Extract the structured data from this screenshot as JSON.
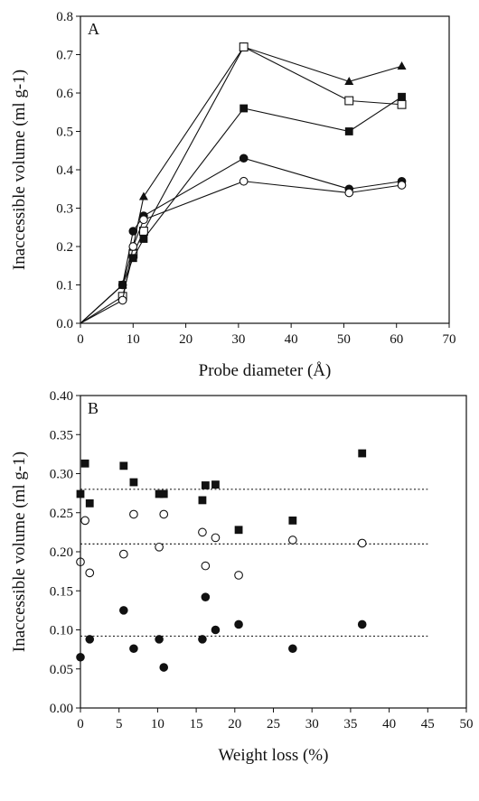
{
  "chart_data": [
    {
      "type": "line",
      "panel_label": "A",
      "xlabel": "Probe diameter (Å)",
      "ylabel": "Inaccessible volume (ml g-1)",
      "xlim": [
        0,
        70
      ],
      "ylim": [
        0.0,
        0.8
      ],
      "x_ticks": [
        "0",
        "10",
        "20",
        "30",
        "40",
        "50",
        "60",
        "70"
      ],
      "y_ticks": [
        "0.0",
        "0.1",
        "0.2",
        "0.3",
        "0.4",
        "0.5",
        "0.6",
        "0.7",
        "0.8"
      ],
      "series": [
        {
          "marker": "filled-triangle",
          "points": [
            [
              0,
              0.0
            ],
            [
              8,
              0.1
            ],
            [
              10,
              0.2
            ],
            [
              12,
              0.33
            ],
            [
              31,
              0.72
            ],
            [
              51,
              0.63
            ],
            [
              61,
              0.67
            ]
          ]
        },
        {
          "marker": "open-square",
          "points": [
            [
              0,
              0.0
            ],
            [
              8,
              0.07
            ],
            [
              10,
              0.18
            ],
            [
              12,
              0.24
            ],
            [
              31,
              0.72
            ],
            [
              51,
              0.58
            ],
            [
              61,
              0.57
            ]
          ]
        },
        {
          "marker": "filled-square",
          "points": [
            [
              0,
              0.0
            ],
            [
              8,
              0.1
            ],
            [
              10,
              0.17
            ],
            [
              12,
              0.22
            ],
            [
              31,
              0.56
            ],
            [
              51,
              0.5
            ],
            [
              61,
              0.59
            ]
          ]
        },
        {
          "marker": "filled-circle",
          "points": [
            [
              0,
              0.0
            ],
            [
              8,
              0.1
            ],
            [
              10,
              0.24
            ],
            [
              12,
              0.28
            ],
            [
              31,
              0.43
            ],
            [
              51,
              0.35
            ],
            [
              61,
              0.37
            ]
          ]
        },
        {
          "marker": "open-circle",
          "points": [
            [
              0,
              0.0
            ],
            [
              8,
              0.06
            ],
            [
              10,
              0.2
            ],
            [
              12,
              0.27
            ],
            [
              31,
              0.37
            ],
            [
              51,
              0.34
            ],
            [
              61,
              0.36
            ]
          ]
        }
      ]
    },
    {
      "type": "scatter",
      "panel_label": "B",
      "xlabel": "Weight loss (%)",
      "ylabel": "Inaccessible volume (ml g-1)",
      "xlim": [
        0,
        50
      ],
      "ylim": [
        0.0,
        0.4
      ],
      "x_ticks": [
        "0",
        "5",
        "10",
        "15",
        "20",
        "25",
        "30",
        "35",
        "40",
        "45",
        "50"
      ],
      "y_ticks": [
        "0.00",
        "0.05",
        "0.10",
        "0.15",
        "0.20",
        "0.25",
        "0.30",
        "0.35",
        "0.40"
      ],
      "reference_lines": [
        {
          "y": 0.28,
          "x_range": [
            0,
            45
          ]
        },
        {
          "y": 0.21,
          "x_range": [
            0,
            45
          ]
        },
        {
          "y": 0.092,
          "x_range": [
            0,
            45
          ]
        }
      ],
      "series": [
        {
          "marker": "filled-square",
          "points": [
            [
              0,
              0.274
            ],
            [
              0.6,
              0.313
            ],
            [
              1.2,
              0.262
            ],
            [
              5.6,
              0.31
            ],
            [
              6.9,
              0.289
            ],
            [
              10.2,
              0.274
            ],
            [
              10.8,
              0.274
            ],
            [
              15.8,
              0.266
            ],
            [
              16.2,
              0.285
            ],
            [
              17.5,
              0.286
            ],
            [
              20.5,
              0.228
            ],
            [
              27.5,
              0.24
            ],
            [
              36.5,
              0.326
            ]
          ]
        },
        {
          "marker": "open-circle",
          "points": [
            [
              0,
              0.187
            ],
            [
              0.6,
              0.24
            ],
            [
              1.2,
              0.173
            ],
            [
              5.6,
              0.197
            ],
            [
              6.9,
              0.248
            ],
            [
              10.2,
              0.206
            ],
            [
              10.8,
              0.248
            ],
            [
              15.8,
              0.225
            ],
            [
              16.2,
              0.182
            ],
            [
              17.5,
              0.218
            ],
            [
              20.5,
              0.17
            ],
            [
              27.5,
              0.215
            ],
            [
              36.5,
              0.211
            ]
          ]
        },
        {
          "marker": "filled-circle",
          "points": [
            [
              0,
              0.065
            ],
            [
              1.2,
              0.088
            ],
            [
              5.6,
              0.125
            ],
            [
              6.9,
              0.076
            ],
            [
              10.2,
              0.088
            ],
            [
              10.8,
              0.052
            ],
            [
              15.8,
              0.088
            ],
            [
              16.2,
              0.142
            ],
            [
              17.5,
              0.1
            ],
            [
              20.5,
              0.107
            ],
            [
              27.5,
              0.076
            ],
            [
              36.5,
              0.107
            ]
          ]
        }
      ]
    }
  ]
}
